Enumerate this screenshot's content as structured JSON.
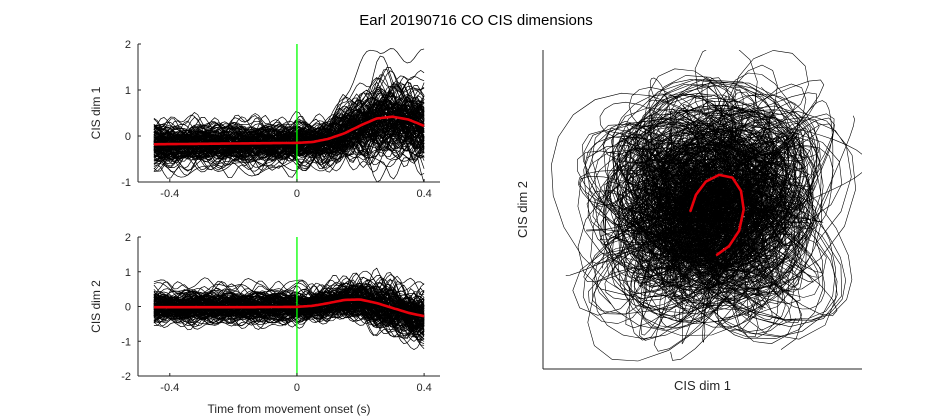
{
  "figure": {
    "title": "Earl 20190716 CO CIS dimensions",
    "colors": {
      "traces": "#000000",
      "mean": "#e8000b",
      "onset_marker": "#00ff00",
      "axes": "#262626",
      "background": "#ffffff"
    }
  },
  "chart_data": [
    {
      "type": "line",
      "panel": "top-left",
      "xlabel": "",
      "ylabel": "CIS dim 1",
      "xlim": [
        -0.5,
        0.45
      ],
      "ylim": [
        -1,
        2
      ],
      "xticks": [
        -0.4,
        0,
        0.4
      ],
      "xtick_labels": [
        "-0.4",
        "0",
        "0.4"
      ],
      "yticks": [
        -1,
        0,
        1,
        2
      ],
      "ytick_labels": [
        "-1",
        "0",
        "1",
        "2"
      ],
      "grid": false,
      "legend": "none",
      "vertical_marker_x": 0,
      "trial_trace_count": 150,
      "trace_spread_pre_onset": 0.32,
      "trace_spread_post_onset": 0.55,
      "mean_trace": {
        "x": [
          -0.45,
          -0.3,
          -0.15,
          0,
          0.05,
          0.1,
          0.15,
          0.2,
          0.25,
          0.3,
          0.35,
          0.4
        ],
        "y": [
          -0.18,
          -0.17,
          -0.16,
          -0.15,
          -0.13,
          -0.06,
          0.06,
          0.23,
          0.38,
          0.42,
          0.36,
          0.22
        ]
      }
    },
    {
      "type": "line",
      "panel": "bottom-left",
      "xlabel": "Time from movement onset (s)",
      "ylabel": "CIS dim 2",
      "xlim": [
        -0.5,
        0.45
      ],
      "ylim": [
        -2,
        2
      ],
      "xticks": [
        -0.4,
        0,
        0.4
      ],
      "xtick_labels": [
        "-0.4",
        "0",
        "0.4"
      ],
      "yticks": [
        -2,
        -1,
        0,
        1,
        2
      ],
      "ytick_labels": [
        "-2",
        "-1",
        "0",
        "1",
        "2"
      ],
      "grid": false,
      "legend": "none",
      "vertical_marker_x": 0,
      "trial_trace_count": 150,
      "trace_spread_pre_onset": 0.38,
      "trace_spread_post_onset": 0.45,
      "mean_trace": {
        "x": [
          -0.45,
          -0.3,
          -0.15,
          0,
          0.05,
          0.1,
          0.15,
          0.2,
          0.25,
          0.3,
          0.35,
          0.4
        ],
        "y": [
          -0.02,
          -0.02,
          -0.02,
          -0.01,
          0.02,
          0.1,
          0.19,
          0.2,
          0.1,
          -0.04,
          -0.18,
          -0.28
        ]
      }
    },
    {
      "type": "line",
      "panel": "right",
      "xlabel": "CIS dim 1",
      "ylabel": "CIS dim 2",
      "xlim": [
        -2.4,
        2.4
      ],
      "ylim": [
        -2.4,
        2.4
      ],
      "xticks": [],
      "yticks": [],
      "grid": false,
      "legend": "none",
      "trial_trace_count": 150,
      "trajectory_spread": 0.85,
      "mean_trajectory": {
        "x": [
          -0.18,
          -0.1,
          0.05,
          0.25,
          0.45,
          0.58,
          0.62,
          0.55,
          0.4,
          0.22
        ],
        "y": [
          -0.02,
          0.22,
          0.42,
          0.52,
          0.48,
          0.28,
          0.0,
          -0.32,
          -0.55,
          -0.68
        ]
      }
    }
  ]
}
